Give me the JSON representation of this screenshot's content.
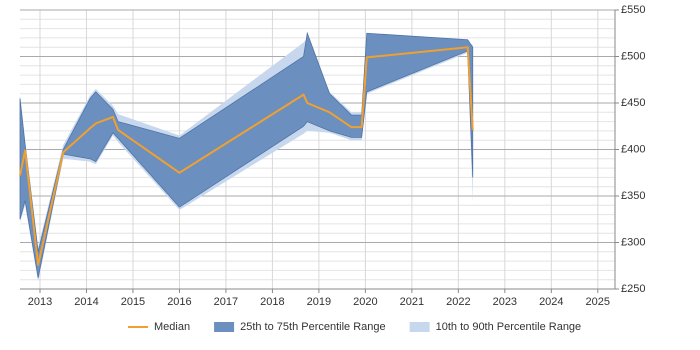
{
  "chart_data": {
    "type": "band-line",
    "x": [
      2012.57,
      2012.68,
      2012.96,
      2013.5,
      2014.08,
      2014.2,
      2014.57,
      2014.68,
      2016.0,
      2018.67,
      2018.75,
      2019.23,
      2019.7,
      2019.92,
      2020.03,
      2022.2,
      2022.31
    ],
    "series": [
      {
        "name": "10th to 90th Percentile Range",
        "color": "#c6d7ee",
        "lower": [
          322,
          340,
          258,
          390,
          387,
          384,
          415,
          408,
          335,
          417,
          420,
          418,
          410,
          410,
          460,
          504,
          342
        ],
        "upper": [
          458,
          410,
          295,
          405,
          458,
          465,
          447,
          438,
          415,
          515,
          520,
          462,
          440,
          440,
          523,
          516,
          512
        ]
      },
      {
        "name": "25th to 75th Percentile Range",
        "color": "#6b8fbf",
        "lower": [
          325,
          345,
          262,
          395,
          390,
          387,
          418,
          412,
          338,
          425,
          430,
          420,
          413,
          413,
          462,
          506,
          370
        ],
        "upper": [
          455,
          405,
          290,
          400,
          455,
          462,
          443,
          430,
          412,
          500,
          525,
          460,
          437,
          437,
          525,
          518,
          510
        ]
      },
      {
        "name": "Median",
        "color": "#f0a030",
        "values": [
          372,
          399,
          276,
          397,
          423,
          428,
          435,
          421,
          375,
          459,
          450,
          440,
          424,
          424,
          499,
          510,
          421
        ]
      }
    ],
    "legend_order": [
      2,
      1,
      0
    ],
    "xlim": [
      2012.57,
      2025.37
    ],
    "xticks": [
      2013,
      2014,
      2015,
      2016,
      2017,
      2018,
      2019,
      2020,
      2021,
      2022,
      2023,
      2024,
      2025
    ],
    "ylim": [
      250,
      550
    ],
    "yticks": [
      {
        "value": 250,
        "label": "£250"
      },
      {
        "value": 300,
        "label": "£300"
      },
      {
        "value": 350,
        "label": "£350"
      },
      {
        "value": 400,
        "label": "£400"
      },
      {
        "value": 450,
        "label": "£450"
      },
      {
        "value": 500,
        "label": "£500"
      },
      {
        "value": 550,
        "label": "£550"
      }
    ],
    "yminorticks": [
      260,
      270,
      280,
      290,
      310,
      320,
      330,
      340,
      360,
      370,
      380,
      390,
      410,
      420,
      430,
      440,
      460,
      470,
      480,
      490,
      510,
      520,
      530,
      540
    ],
    "grid": true
  }
}
